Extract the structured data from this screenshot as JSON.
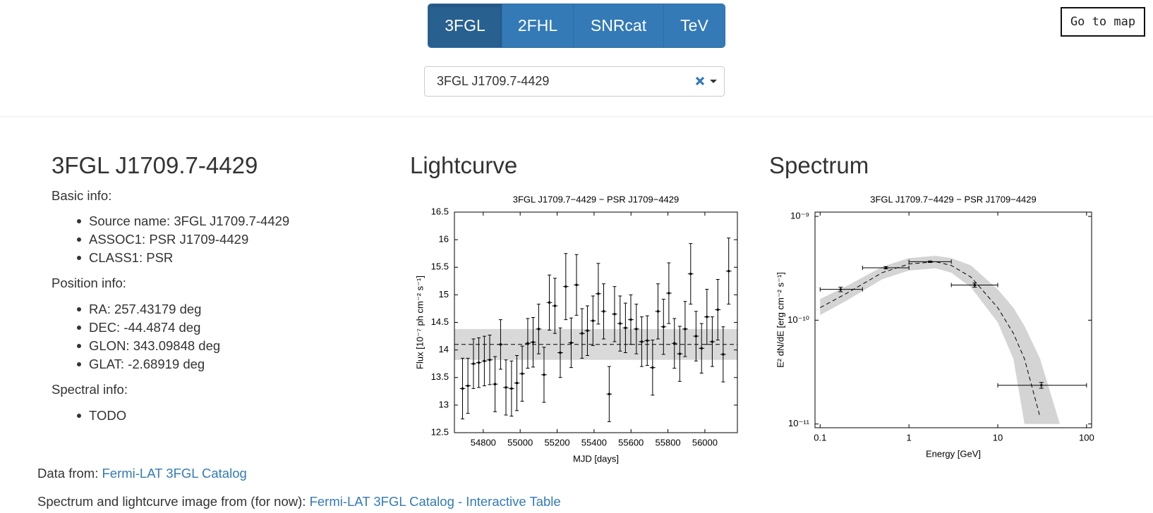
{
  "nav": {
    "tabs": [
      "3FGL",
      "2FHL",
      "SNRcat",
      "TeV"
    ],
    "active": 0
  },
  "map_button": "Go to map",
  "search": {
    "value": "3FGL J1709.7-4429"
  },
  "source": {
    "title": "3FGL J1709.7-4429",
    "sections": [
      {
        "heading": "Basic info:",
        "items": [
          "Source name: 3FGL J1709.7-4429",
          "ASSOC1: PSR J1709-4429",
          "CLASS1: PSR"
        ]
      },
      {
        "heading": "Position info:",
        "items": [
          "RA: 257.43179 deg",
          "DEC: -44.4874 deg",
          "GLON: 343.09848 deg",
          "GLAT: -2.68919 deg"
        ]
      },
      {
        "heading": "Spectral info:",
        "items": [
          "TODO"
        ]
      }
    ]
  },
  "lightcurve_heading": "Lightcurve",
  "spectrum_heading": "Spectrum",
  "chart_data": [
    {
      "type": "errorbar",
      "title": "3FGL J1709.7−4429 − PSR J1709−4429",
      "xlabel": "MJD [days]",
      "ylabel": "Flux [10⁻⁷ ph cm⁻² s⁻¹]",
      "x": [
        54688,
        54717,
        54747,
        54776,
        54806,
        54835,
        54864,
        54894,
        54923,
        54953,
        54982,
        55011,
        55041,
        55070,
        55100,
        55129,
        55158,
        55188,
        55217,
        55247,
        55276,
        55305,
        55335,
        55364,
        55394,
        55423,
        55452,
        55482,
        55511,
        55541,
        55570,
        55599,
        55629,
        55658,
        55688,
        55717,
        55746,
        55776,
        55805,
        55835,
        55864,
        55893,
        55923,
        55952,
        55982,
        56011,
        56040,
        56070,
        56099,
        56129
      ],
      "values": [
        13.3,
        13.35,
        13.75,
        13.77,
        13.8,
        13.82,
        13.38,
        14.1,
        13.32,
        13.3,
        13.4,
        13.57,
        14.12,
        14.14,
        14.38,
        13.55,
        14.86,
        14.8,
        13.95,
        15.15,
        14.13,
        15.18,
        14.3,
        14.35,
        14.53,
        15.02,
        14.7,
        13.2,
        14.65,
        14.48,
        14.4,
        14.55,
        14.38,
        14.15,
        14.17,
        13.68,
        14.7,
        14.42,
        15.03,
        14.12,
        13.93,
        14.38,
        15.38,
        14.25,
        14.03,
        14.6,
        14.15,
        14.73,
        13.92,
        15.43
      ],
      "errors": [
        0.55,
        0.5,
        0.45,
        0.45,
        0.45,
        0.45,
        0.5,
        0.45,
        0.5,
        0.5,
        0.5,
        0.5,
        0.45,
        0.45,
        0.45,
        0.5,
        0.5,
        0.5,
        0.45,
        0.6,
        0.45,
        0.55,
        0.45,
        0.45,
        0.45,
        0.55,
        0.5,
        0.5,
        0.5,
        0.5,
        0.45,
        0.45,
        0.45,
        0.45,
        0.45,
        0.5,
        0.5,
        0.5,
        0.55,
        0.45,
        0.5,
        0.5,
        0.55,
        0.45,
        0.45,
        0.5,
        0.45,
        0.55,
        0.5,
        0.6
      ],
      "xerr": 15,
      "mean": 14.1,
      "band": [
        13.82,
        14.38
      ],
      "xlim": [
        54644,
        56176
      ],
      "ylim": [
        12.5,
        16.5
      ],
      "xticks": [
        54800,
        55000,
        55200,
        55400,
        55600,
        55800,
        56000
      ],
      "yticks": [
        12.5,
        13,
        13.5,
        14,
        14.5,
        15,
        15.5,
        16,
        16.5
      ],
      "color": "#000000",
      "band_color": "#d9d9d9"
    },
    {
      "type": "sed",
      "title": "3FGL J1709.7−4429 − PSR J1709−4429",
      "xlabel": "Energy [GeV]",
      "ylabel": "E² dN/dE [erg cm⁻² s⁻¹]",
      "log_x": true,
      "log_y": true,
      "x": [
        0.17,
        0.55,
        1.73,
        5.5,
        31
      ],
      "x_low": [
        0.1,
        0.3,
        1,
        3,
        10
      ],
      "x_high": [
        0.3,
        1,
        3,
        10,
        100
      ],
      "values": [
        1.98e-10,
        3.2e-10,
        3.66e-10,
        2.18e-10,
        2.36e-11
      ],
      "errors": [
        1e-11,
        8e-12,
        6e-12,
        1e-11,
        1.5e-12
      ],
      "model": {
        "x": [
          0.1,
          0.2,
          0.5,
          1,
          2,
          3,
          5,
          10,
          15,
          20,
          30
        ],
        "values": [
          1.32e-10,
          1.82e-10,
          2.87e-10,
          3.48e-10,
          3.66e-10,
          3.37e-10,
          2.6e-10,
          1.32e-10,
          7.47e-11,
          4.24e-11,
          1.16e-11
        ]
      },
      "band_upper": {
        "x": [
          0.1,
          0.2,
          0.5,
          1,
          2,
          3,
          5,
          10,
          15,
          20,
          30,
          50
        ],
        "values": [
          1.6e-10,
          2.14e-10,
          3.27e-10,
          3.97e-10,
          4.17e-10,
          3.97e-10,
          3.37e-10,
          1.98e-10,
          1.32e-10,
          8.79e-11,
          4.24e-11,
          1e-11
        ]
      },
      "band_lower": {
        "x": [
          0.1,
          0.2,
          0.5,
          1,
          2,
          3,
          5,
          10,
          15,
          20
        ],
        "values": [
          1.12e-10,
          1.55e-10,
          2.48e-10,
          3.01e-10,
          3.16e-10,
          2.87e-10,
          2.07e-10,
          9.53e-11,
          4.24e-11,
          1e-11
        ]
      },
      "xlim": [
        0.0875,
        114
      ],
      "ylim": [
        9.2e-12,
        1.1e-09
      ],
      "xticks": [
        0.1,
        1,
        10,
        100
      ],
      "yticks": [
        {
          "value": 1e-11,
          "label": "10⁻¹¹"
        },
        {
          "value": 1e-10,
          "label": "10⁻¹⁰"
        },
        {
          "value": 1e-09,
          "label": "10⁻⁹"
        }
      ],
      "color": "#000000",
      "band_color": "#d4d4d4"
    }
  ],
  "footer": [
    {
      "text": "Data from:",
      "link": "Fermi-LAT 3FGL Catalog"
    },
    {
      "text": "Spectrum and lightcurve image from (for now):",
      "link": "Fermi-LAT 3FGL Catalog - Interactive Table"
    }
  ]
}
